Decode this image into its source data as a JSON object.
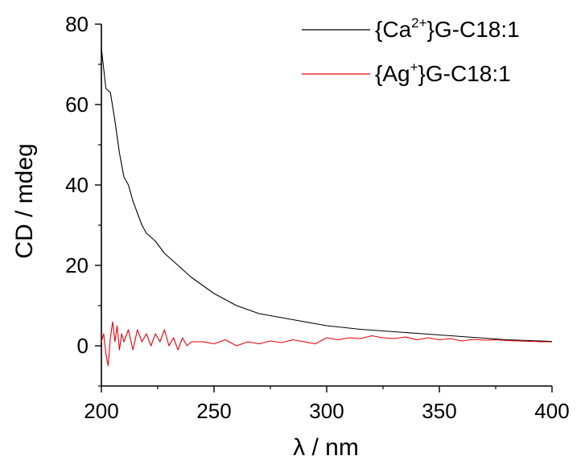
{
  "chart_data": {
    "type": "line",
    "title": "",
    "xlabel": "λ / nm",
    "ylabel": "CD / mdeg",
    "xlim": [
      200,
      400
    ],
    "ylim": [
      -10,
      80
    ],
    "xticks": [
      200,
      250,
      300,
      350,
      400
    ],
    "yticks": [
      0,
      20,
      40,
      60,
      80
    ],
    "grid": false,
    "legend_position": "top-right",
    "series": [
      {
        "name": "{Ca2+}G-C18:1",
        "legend": {
          "pre": "{Ca",
          "sup": "2+",
          "post": "}G-C18:1"
        },
        "color": "#000000",
        "x": [
          200,
          202,
          204,
          206,
          208,
          210,
          212,
          214,
          216,
          218,
          220,
          222,
          224,
          226,
          228,
          230,
          232,
          234,
          236,
          238,
          240,
          245,
          250,
          255,
          260,
          265,
          270,
          275,
          280,
          285,
          290,
          295,
          300,
          305,
          310,
          315,
          320,
          325,
          330,
          335,
          340,
          345,
          350,
          355,
          360,
          365,
          370,
          375,
          380,
          385,
          390,
          395,
          400
        ],
        "y": [
          74,
          64,
          63,
          56,
          48,
          42,
          40,
          36,
          33,
          30,
          28,
          27,
          26,
          24.5,
          23,
          22,
          21,
          20,
          19,
          18,
          17,
          15,
          13,
          11.5,
          10,
          9,
          8,
          7.5,
          7,
          6.5,
          6,
          5.5,
          5,
          4.7,
          4.4,
          4.1,
          3.9,
          3.7,
          3.5,
          3.3,
          3.1,
          2.9,
          2.7,
          2.5,
          2.3,
          2.1,
          1.9,
          1.7,
          1.5,
          1.4,
          1.3,
          1.2,
          1.1
        ]
      },
      {
        "name": "{Ag+}G-C18:1",
        "legend": {
          "pre": "{Ag",
          "sup": "+",
          "post": "}G-C18:1"
        },
        "color": "#e8000b",
        "x": [
          200,
          201,
          202,
          203,
          204,
          205,
          206,
          207,
          208,
          209,
          210,
          212,
          214,
          216,
          218,
          220,
          222,
          224,
          226,
          228,
          230,
          232,
          234,
          236,
          238,
          240,
          245,
          250,
          255,
          260,
          265,
          270,
          275,
          280,
          285,
          290,
          295,
          300,
          305,
          310,
          315,
          320,
          325,
          330,
          335,
          340,
          345,
          350,
          355,
          360,
          365,
          370,
          375,
          380,
          385,
          390,
          395,
          400
        ],
        "y": [
          1,
          3,
          -2,
          -5,
          2,
          6,
          1,
          5,
          -1,
          3,
          1,
          4,
          -1,
          4,
          1,
          3,
          0,
          3,
          1,
          4,
          0,
          2,
          -1,
          2,
          0,
          1,
          1,
          0.5,
          1.5,
          0,
          1,
          0.5,
          1.2,
          0.8,
          1.5,
          1,
          0.5,
          2,
          1.5,
          2,
          1.8,
          2.5,
          2,
          1.8,
          2.2,
          1.5,
          2,
          1.5,
          1.8,
          1.2,
          1.6,
          1.4,
          1.5,
          1.3,
          1.2,
          1.1,
          1,
          1
        ]
      }
    ]
  }
}
